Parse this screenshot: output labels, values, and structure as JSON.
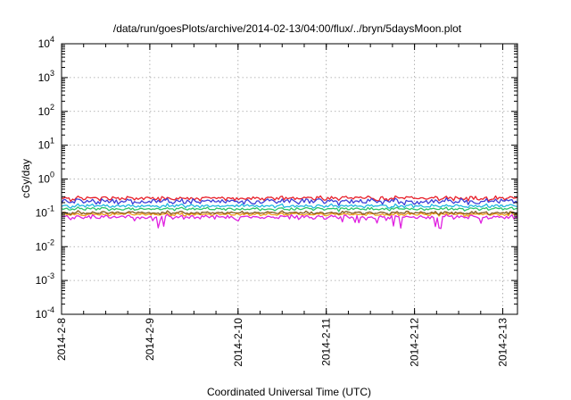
{
  "chart_data": {
    "type": "line",
    "title": "/data/run/goesPlots/archive/2014-02-13/04:00/flux/../bryn/5daysMoon.plot",
    "xlabel": "Coordinated Universal Time (UTC)",
    "ylabel": "cGy/day",
    "y_scale": "log",
    "ylim": [
      0.0001,
      10000
    ],
    "xlim": [
      "2014-02-08 00:00",
      "2014-02-13 04:00"
    ],
    "grid": true,
    "y_ticks": [
      {
        "base": "10",
        "exp": "4"
      },
      {
        "base": "10",
        "exp": "3"
      },
      {
        "base": "10",
        "exp": "2"
      },
      {
        "base": "10",
        "exp": "1"
      },
      {
        "base": "10",
        "exp": "0"
      },
      {
        "base": "10",
        "exp": "-1"
      },
      {
        "base": "10",
        "exp": "-2"
      },
      {
        "base": "10",
        "exp": "-3"
      },
      {
        "base": "10",
        "exp": "-4"
      }
    ],
    "x_ticks": [
      "2014-2-8",
      "2014-2-9",
      "2014-2-10",
      "2014-2-11",
      "2014-2-12",
      "2014-2-13"
    ],
    "x_tick_dates": [
      "2014-02-08",
      "2014-02-09",
      "2014-02-10",
      "2014-02-11",
      "2014-02-12",
      "2014-02-13"
    ],
    "series": [
      {
        "color": "#e8202a",
        "base": 0.27,
        "var": 0.18,
        "dip": 0.0
      },
      {
        "color": "#3a3fd8",
        "base": 0.22,
        "var": 0.22,
        "dip": 0.2
      },
      {
        "color": "#22b8e0",
        "base": 0.16,
        "var": 0.14,
        "dip": 0.0
      },
      {
        "color": "#2ec46a",
        "base": 0.13,
        "var": 0.12,
        "dip": 0.0
      },
      {
        "color": "#8b5a1e",
        "base": 0.1,
        "var": 0.12,
        "dip": 0.0
      },
      {
        "color": "#f0a020",
        "base": 0.09,
        "var": 0.12,
        "dip": 0.0
      },
      {
        "color": "#e020e0",
        "base": 0.075,
        "var": 0.18,
        "dip": 0.55
      }
    ]
  }
}
